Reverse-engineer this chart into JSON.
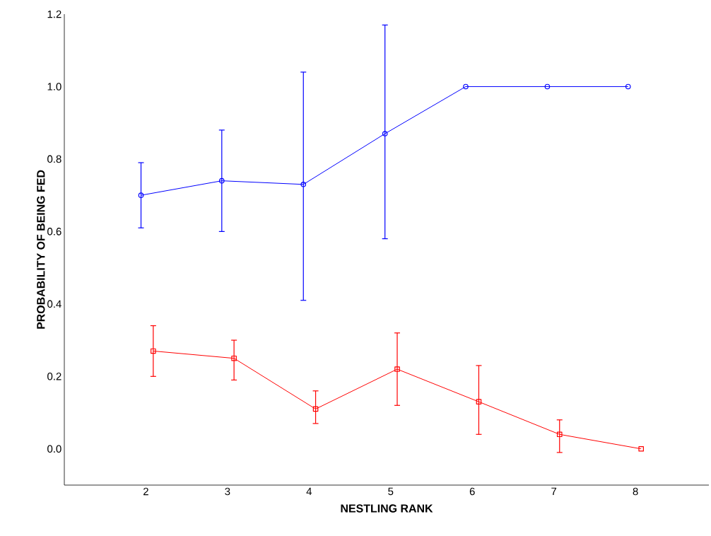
{
  "chart_data": {
    "type": "line",
    "xlabel": "NESTLING RANK",
    "ylabel": "PROBABILITY OF BEING FED",
    "xlim": [
      1,
      8.9
    ],
    "ylim": [
      -0.1,
      1.2
    ],
    "xticks": [
      2,
      3,
      4,
      5,
      6,
      7,
      8
    ],
    "yticks": [
      {
        "value": 0,
        "label": "0.0"
      },
      0.2,
      0.4,
      0.6,
      0.8,
      {
        "value": 1,
        "label": "1.0"
      },
      1.2
    ],
    "grid": false,
    "line_style": "solid",
    "series": [
      {
        "color": "#0000ff",
        "marker": "circle",
        "x": [
          1.94,
          2.93,
          3.93,
          4.93,
          5.92,
          6.92,
          7.91
        ],
        "values": [
          0.7,
          0.74,
          0.73,
          0.87,
          1.0,
          1.0,
          1.0
        ],
        "errors": [
          [
            0.61,
            0.79
          ],
          [
            0.6,
            0.88
          ],
          [
            0.41,
            1.04
          ],
          [
            0.58,
            1.17
          ],
          null,
          null,
          null
        ]
      },
      {
        "color": "#ff0000",
        "marker": "square",
        "x": [
          2.09,
          3.08,
          4.08,
          5.08,
          6.08,
          7.07,
          8.07
        ],
        "values": [
          0.27,
          0.25,
          0.11,
          0.22,
          0.13,
          0.04,
          0.0
        ],
        "errors": [
          [
            0.2,
            0.34
          ],
          [
            0.19,
            0.3
          ],
          [
            0.07,
            0.16
          ],
          [
            0.12,
            0.32
          ],
          [
            0.04,
            0.23
          ],
          [
            -0.01,
            0.08
          ],
          null
        ]
      }
    ]
  }
}
